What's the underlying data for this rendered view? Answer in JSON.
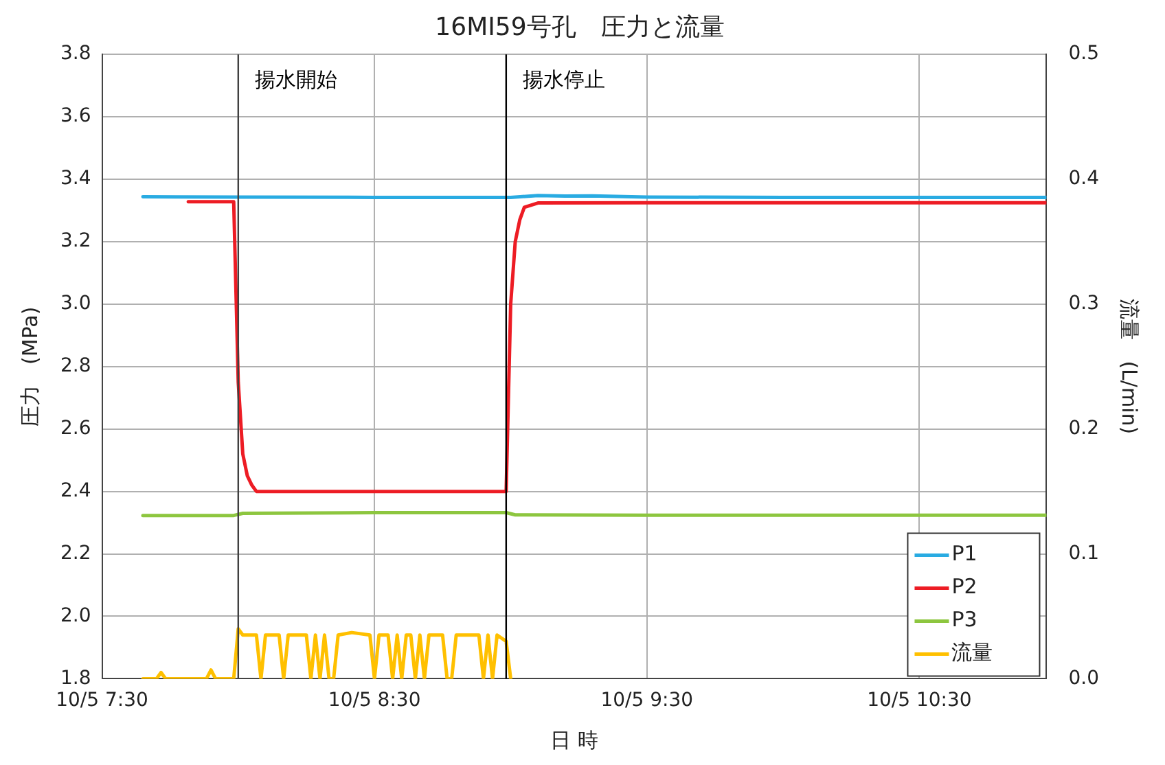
{
  "chart_data": {
    "type": "line",
    "title": "16MI59号孔　圧力と流量",
    "xlabel": "日 時",
    "ylabel": "圧力　(MPa)",
    "y2label": "流量　(L/min)",
    "xlim": [
      "--10-05T07:30",
      "--10-05T10:58"
    ],
    "xticks": [
      {
        "value": "--10-05T07:30",
        "label": "10/5 7:30"
      },
      {
        "value": "--10-05T08:30",
        "label": "10/5 8:30"
      },
      {
        "value": "--10-05T09:30",
        "label": "10/5 9:30"
      },
      {
        "value": "--10-05T10:30",
        "label": "10/5 10:30"
      }
    ],
    "ylim": [
      1.8,
      3.8
    ],
    "yticks": [
      1.8,
      {
        "value": 2,
        "label": "2.0"
      },
      2.2,
      2.4,
      2.6,
      2.8,
      {
        "value": 3,
        "label": "3.0"
      },
      3.2,
      3.4,
      3.6,
      3.8
    ],
    "y2lim": [
      0,
      0.5
    ],
    "y2ticks": [
      {
        "value": 0,
        "label": "0.0"
      },
      0.1,
      0.2,
      0.3,
      0.4,
      0.5
    ],
    "grid": true,
    "legend": "bottom right",
    "marker": "none",
    "line_style": "solid",
    "ref_lines": [
      {
        "axis": "x",
        "value": "--10-05T08:00",
        "label": "揚水開始",
        "color": "#404040"
      },
      {
        "axis": "x",
        "value": "--10-05T08:59",
        "label": "揚水停止",
        "color": "#000000"
      }
    ],
    "series": [
      {
        "name": "P1",
        "color": "#29abe2",
        "x": [
          "--10-05T07:39",
          "--10-05T08:00",
          "--10-05T08:30",
          "--10-05T09:00",
          "--10-05T09:06",
          "--10-05T09:12",
          "--10-05T09:18",
          "--10-05T09:30",
          "--10-05T10:00",
          "--10-05T10:30",
          "--10-05T10:58"
        ],
        "values": [
          3.344,
          3.343,
          3.342,
          3.342,
          3.348,
          3.346,
          3.347,
          3.343,
          3.342,
          3.342,
          3.342
        ]
      },
      {
        "name": "P2",
        "color": "#ed1c24",
        "x": [
          "--10-05T07:49",
          "--10-05T07:59",
          "--10-05T08:00",
          "--10-05T08:01",
          "--10-05T08:02",
          "--10-05T08:03",
          "--10-05T08:04",
          "--10-05T08:30",
          "--10-05T08:59",
          "--10-05T09:00",
          "--10-05T09:01",
          "--10-05T09:02",
          "--10-05T09:03",
          "--10-05T09:06",
          "--10-05T09:30",
          "--10-05T10:58"
        ],
        "values": [
          3.328,
          3.328,
          2.75,
          2.52,
          2.45,
          2.42,
          2.4,
          2.4,
          2.4,
          3.0,
          3.2,
          3.27,
          3.31,
          3.324,
          3.325,
          3.325
        ]
      },
      {
        "name": "P3",
        "color": "#8dc63f",
        "x": [
          "--10-05T07:39",
          "--10-05T07:59",
          "--10-05T08:01",
          "--10-05T08:30",
          "--10-05T08:59",
          "--10-05T09:01",
          "--10-05T09:30",
          "--10-05T10:58"
        ],
        "values": [
          2.323,
          2.323,
          2.33,
          2.332,
          2.332,
          2.325,
          2.324,
          2.324
        ]
      },
      {
        "name": "流量",
        "color": "#ffc000",
        "axis": "y2",
        "x": [
          "--10-05T07:39",
          "--10-05T07:42",
          "--10-05T07:43",
          "--10-05T07:44",
          "--10-05T07:53",
          "--10-05T07:54",
          "--10-05T07:55",
          "--10-05T07:59",
          "--10-05T08:00",
          "--10-05T08:01",
          "--10-05T08:04",
          "--10-05T08:05",
          "--10-05T08:06",
          "--10-05T08:09",
          "--10-05T08:10",
          "--10-05T08:11",
          "--10-05T08:15",
          "--10-05T08:16",
          "--10-05T08:17",
          "--10-05T08:18",
          "--10-05T08:19",
          "--10-05T08:20",
          "--10-05T08:21",
          "--10-05T08:22",
          "--10-05T08:25",
          "--10-05T08:29",
          "--10-05T08:30",
          "--10-05T08:31",
          "--10-05T08:33",
          "--10-05T08:34",
          "--10-05T08:35",
          "--10-05T08:36",
          "--10-05T08:37",
          "--10-05T08:38",
          "--10-05T08:39",
          "--10-05T08:40",
          "--10-05T08:41",
          "--10-05T08:42",
          "--10-05T08:45",
          "--10-05T08:46",
          "--10-05T08:47",
          "--10-05T08:48",
          "--10-05T08:53",
          "--10-05T08:54",
          "--10-05T08:55",
          "--10-05T08:56",
          "--10-05T08:57",
          "--10-05T08:59",
          "--10-05T09:00"
        ],
        "values": [
          0,
          0,
          0.005,
          0,
          0,
          0.007,
          0,
          0,
          0.04,
          0.035,
          0.035,
          0,
          0.035,
          0.035,
          0,
          0.035,
          0.035,
          0,
          0.035,
          0,
          0.035,
          0,
          0,
          0.035,
          0.037,
          0.035,
          0,
          0.035,
          0.035,
          0,
          0.035,
          0,
          0.035,
          0.035,
          0,
          0.035,
          0,
          0.035,
          0.035,
          0,
          0,
          0.035,
          0.035,
          0,
          0.035,
          0,
          0.035,
          0.03,
          0
        ]
      }
    ]
  }
}
